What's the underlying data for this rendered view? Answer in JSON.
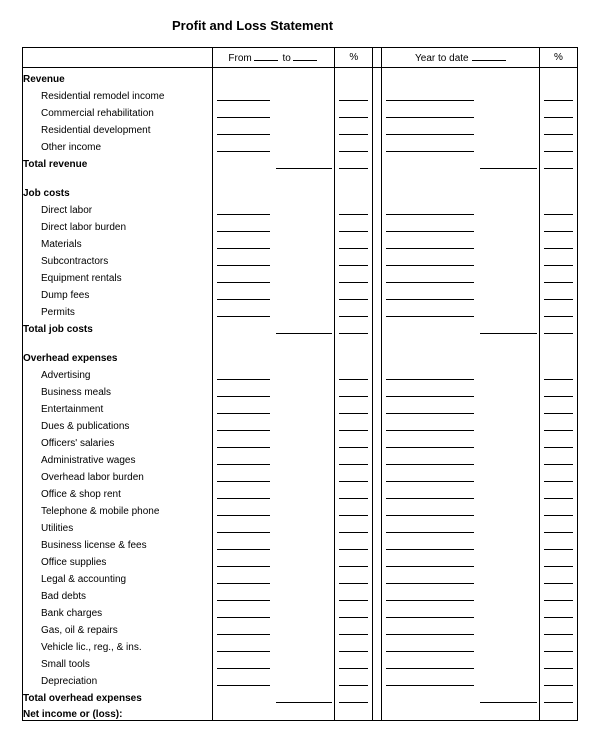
{
  "title": "Profit and Loss Statement",
  "header": {
    "from_label": "From",
    "to_label": "to",
    "pct_label": "%",
    "ytd_label": "Year to date",
    "pct2_label": "%"
  },
  "sections": [
    {
      "heading": "Revenue",
      "items": [
        "Residential remodel income",
        "Commercial rehabilitation",
        "Residential development",
        "Other income"
      ],
      "total": "Total revenue"
    },
    {
      "heading": "Job costs",
      "items": [
        "Direct labor",
        "Direct labor burden",
        "Materials",
        "Subcontractors",
        "Equipment rentals",
        "Dump fees",
        "Permits"
      ],
      "total": "Total job costs"
    },
    {
      "heading": "Overhead expenses",
      "items": [
        "Advertising",
        "Business meals",
        "Entertainment",
        "Dues & publications",
        "Officers' salaries",
        "Administrative wages",
        "Overhead labor burden",
        "Office & shop rent",
        "Telephone & mobile phone",
        "Utilities",
        "Business license & fees",
        "Office supplies",
        "Legal & accounting",
        "Bad debts",
        "Bank charges",
        "Gas, oil & repairs",
        "Vehicle lic., reg., & ins.",
        "Small tools",
        "Depreciation"
      ],
      "total": "Total overhead expenses"
    }
  ],
  "net_label": "Net income or (loss):",
  "colors": {
    "bg": "#ffffff",
    "ink": "#000000"
  }
}
